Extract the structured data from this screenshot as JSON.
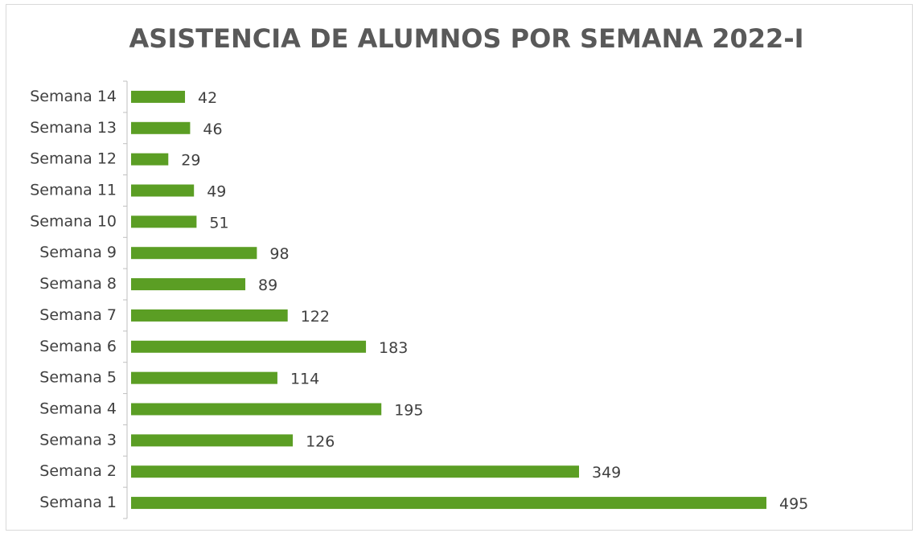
{
  "chart_data": {
    "type": "barh",
    "title": "ASISTENCIA DE ALUMNOS POR SEMANA 2022-I",
    "categories": [
      "Semana 1",
      "Semana 2",
      "Semana 3",
      "Semana 4",
      "Semana 5",
      "Semana 6",
      "Semana 7",
      "Semana 8",
      "Semana 9",
      "Semana 10",
      "Semana 11",
      "Semana 12",
      "Semana 13",
      "Semana 14"
    ],
    "values": [
      495,
      349,
      126,
      195,
      114,
      183,
      122,
      89,
      98,
      51,
      49,
      29,
      46,
      42
    ],
    "color": "#5b9e24"
  }
}
